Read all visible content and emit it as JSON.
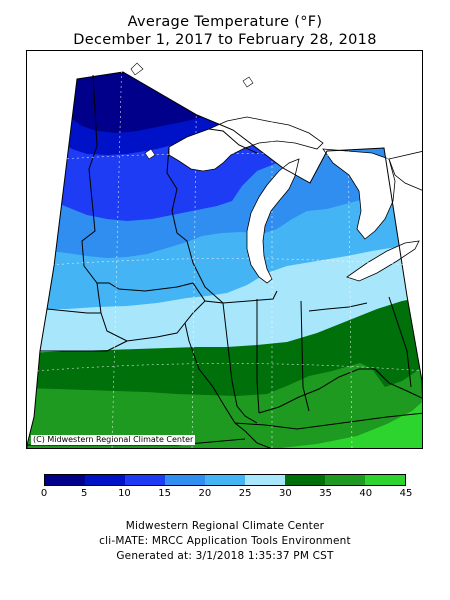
{
  "title": {
    "line1": "Average Temperature (°F)",
    "line2": "December 1, 2017 to February 28, 2018"
  },
  "map": {
    "copyright": "(C) Midwestern Regional Climate Center"
  },
  "legend": {
    "bins": [
      {
        "min": 0,
        "max": 5,
        "color": "#00008a"
      },
      {
        "min": 5,
        "max": 10,
        "color": "#0012c8"
      },
      {
        "min": 10,
        "max": 15,
        "color": "#1f3cf5"
      },
      {
        "min": 15,
        "max": 20,
        "color": "#2f8ef0"
      },
      {
        "min": 20,
        "max": 25,
        "color": "#45b4f5"
      },
      {
        "min": 25,
        "max": 30,
        "color": "#a8e6fc"
      },
      {
        "min": 30,
        "max": 35,
        "color": "#00700a"
      },
      {
        "min": 35,
        "max": 40,
        "color": "#1f9a20"
      },
      {
        "min": 40,
        "max": 45,
        "color": "#2ed42e"
      }
    ],
    "ticks": [
      "0",
      "5",
      "10",
      "15",
      "20",
      "25",
      "30",
      "35",
      "40",
      "45"
    ]
  },
  "footer": {
    "line1": "Midwestern Regional Climate Center",
    "line2": "cli-MATE: MRCC Application Tools Environment",
    "line3": "Generated at: 3/1/2018 1:35:37 PM CST"
  }
}
